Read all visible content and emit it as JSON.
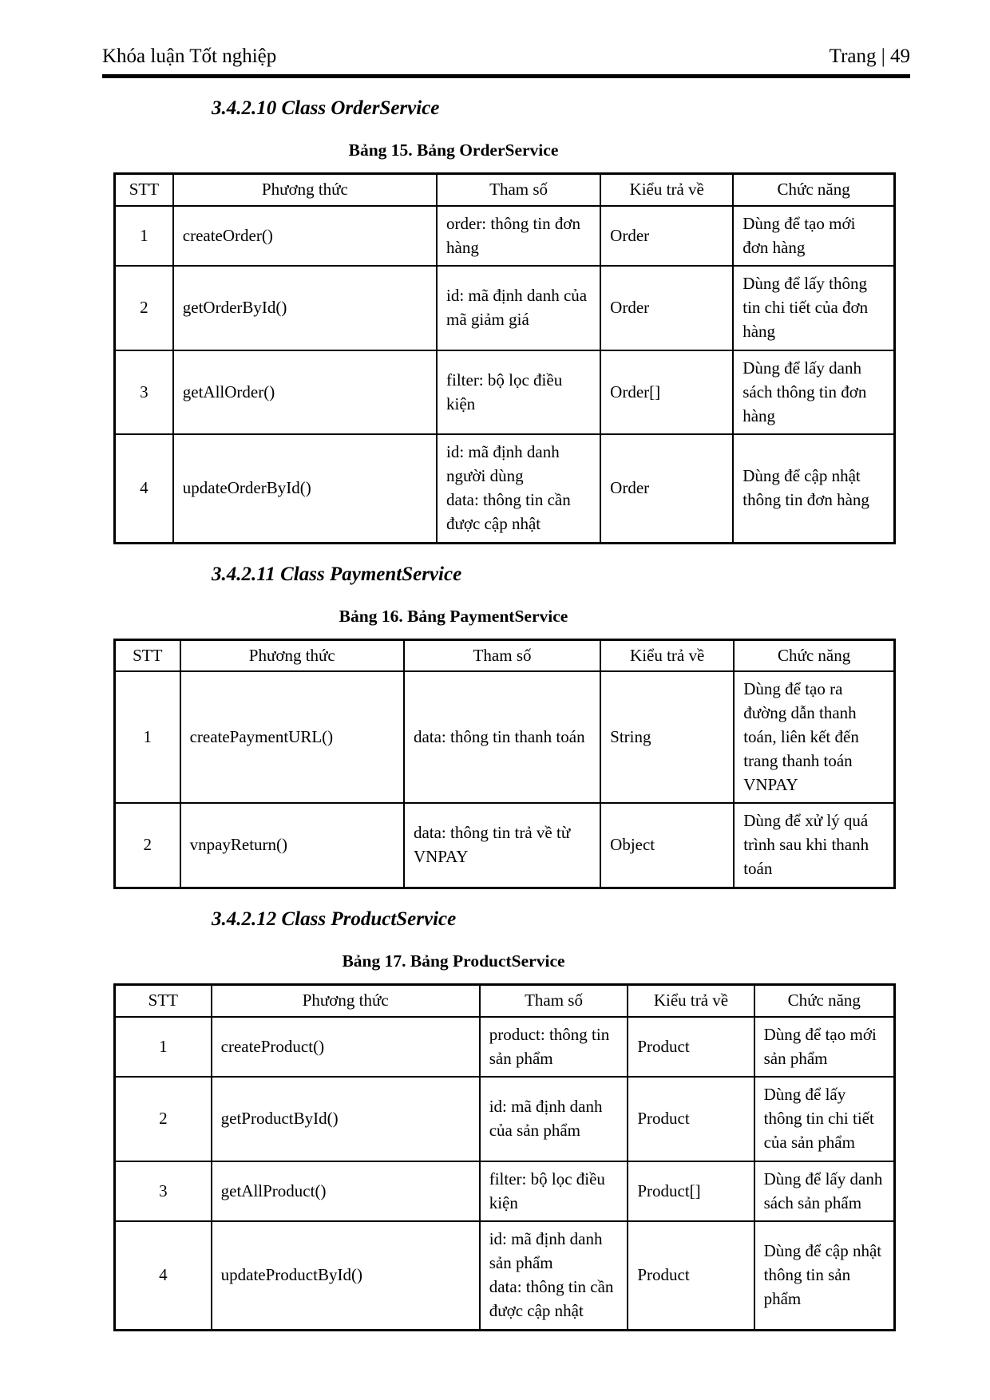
{
  "page_header": {
    "title": "Khóa luận Tốt nghiệp",
    "page_label": "Trang | 49"
  },
  "sections": [
    {
      "heading": "3.4.2.10 Class OrderService",
      "caption": "Bảng 15. Bảng OrderService",
      "table": {
        "columns": [
          "STT",
          "Phương thức",
          "Tham số",
          "Kiểu trả về",
          "Chức năng"
        ],
        "rows": [
          [
            "1",
            "createOrder()",
            "order: thông tin đơn hàng",
            "Order",
            "Dùng để tạo mới đơn hàng"
          ],
          [
            "2",
            "getOrderById()",
            "id: mã định danh của mã giảm giá",
            "Order",
            "Dùng để lấy thông tin chi tiết của đơn hàng"
          ],
          [
            "3",
            "getAllOrder()",
            "filter: bộ lọc điều kiện",
            "Order[]",
            "Dùng để lấy danh sách thông tin đơn hàng"
          ],
          [
            "4",
            "updateOrderById()",
            "id: mã định danh người dùng\ndata: thông tin cần được cập nhật",
            "Order",
            "Dùng để cập nhật thông tin đơn hàng"
          ]
        ]
      }
    },
    {
      "heading": "3.4.2.11 Class PaymentService",
      "caption": "Bảng 16. Bảng PaymentService",
      "table": {
        "columns": [
          "STT",
          "Phương thức",
          "Tham số",
          "Kiểu trả về",
          "Chức năng"
        ],
        "rows": [
          [
            "1",
            "createPaymentURL()",
            "data: thông tin thanh toán",
            "String",
            "Dùng để tạo ra đường dẫn thanh toán, liên kết đến trang thanh toán VNPAY"
          ],
          [
            "2",
            "vnpayReturn()",
            "data: thông tin trả về từ VNPAY",
            "Object",
            "Dùng để xử lý quá trình sau khi thanh toán"
          ]
        ]
      }
    },
    {
      "heading": "3.4.2.12 Class ProductService",
      "caption": "Bảng 17. Bảng ProductService",
      "table": {
        "columns": [
          "STT",
          "Phương thức",
          "Tham số",
          "Kiểu trả về",
          "Chức năng"
        ],
        "rows": [
          [
            "1",
            "createProduct()",
            "product: thông tin sản phẩm",
            "Product",
            "Dùng để tạo mới sản phẩm"
          ],
          [
            "2",
            "getProductById()",
            "id: mã định danh của sản phẩm",
            "Product",
            "Dùng để lấy thông tin chi tiết của sản phẩm"
          ],
          [
            "3",
            "getAllProduct()",
            "filter: bộ lọc điều kiện",
            "Product[]",
            "Dùng để lấy danh sách sản phẩm"
          ],
          [
            "4",
            "updateProductById()",
            "id: mã định danh sản phẩm\ndata: thông tin cần được cập nhật",
            "Product",
            "Dùng để cập nhật thông tin sản phẩm"
          ]
        ]
      }
    }
  ]
}
